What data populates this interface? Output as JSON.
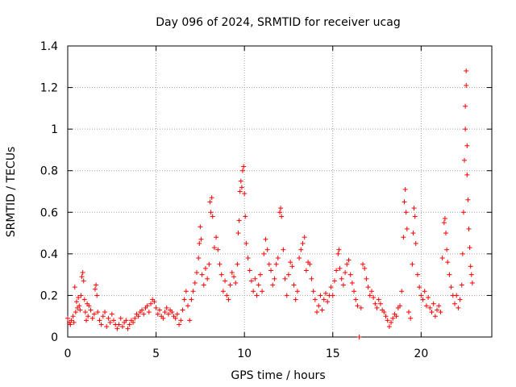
{
  "chart_data": {
    "type": "scatter",
    "title": "Day 096 of 2024, SRMTID for receiver ucag",
    "xlabel": "GPS time / hours",
    "ylabel": "SRMTID / TECUs",
    "xlim": [
      0,
      24
    ],
    "ylim": [
      0,
      1.4
    ],
    "x_ticks": [
      0,
      5,
      10,
      15,
      20
    ],
    "x_tick_labels": [
      "0",
      "5",
      "10",
      "15",
      "20"
    ],
    "y_ticks": [
      0,
      0.2,
      0.4,
      0.6,
      0.8,
      1.0,
      1.2,
      1.4
    ],
    "y_tick_labels": [
      "0",
      "0.2",
      "0.4",
      "0.6",
      "0.8",
      "1",
      "1.2",
      "1.4"
    ],
    "grid": true,
    "marker": "+",
    "marker_color": "#ff0000",
    "series": [
      {
        "name": "SRMTID",
        "points": [
          [
            0.0,
            0.09
          ],
          [
            0.1,
            0.07
          ],
          [
            0.15,
            0.06
          ],
          [
            0.2,
            0.08
          ],
          [
            0.3,
            0.1
          ],
          [
            0.35,
            0.07
          ],
          [
            0.4,
            0.24
          ],
          [
            0.45,
            0.12
          ],
          [
            0.5,
            0.17
          ],
          [
            0.55,
            0.14
          ],
          [
            0.6,
            0.19
          ],
          [
            0.65,
            0.15
          ],
          [
            0.7,
            0.13
          ],
          [
            0.75,
            0.2
          ],
          [
            0.8,
            0.29
          ],
          [
            0.85,
            0.31
          ],
          [
            0.9,
            0.27
          ],
          [
            0.95,
            0.18
          ],
          [
            1.0,
            0.12
          ],
          [
            1.05,
            0.08
          ],
          [
            1.1,
            0.16
          ],
          [
            1.15,
            0.1
          ],
          [
            1.2,
            0.15
          ],
          [
            1.3,
            0.13
          ],
          [
            1.4,
            0.09
          ],
          [
            1.5,
            0.11
          ],
          [
            1.55,
            0.23
          ],
          [
            1.6,
            0.25
          ],
          [
            1.65,
            0.2
          ],
          [
            1.7,
            0.12
          ],
          [
            1.8,
            0.08
          ],
          [
            1.9,
            0.06
          ],
          [
            2.0,
            0.1
          ],
          [
            2.1,
            0.12
          ],
          [
            2.2,
            0.05
          ],
          [
            2.3,
            0.09
          ],
          [
            2.4,
            0.07
          ],
          [
            2.5,
            0.11
          ],
          [
            2.6,
            0.08
          ],
          [
            2.7,
            0.06
          ],
          [
            2.8,
            0.04
          ],
          [
            2.9,
            0.06
          ],
          [
            3.0,
            0.09
          ],
          [
            3.1,
            0.05
          ],
          [
            3.2,
            0.07
          ],
          [
            3.3,
            0.08
          ],
          [
            3.4,
            0.04
          ],
          [
            3.5,
            0.06
          ],
          [
            3.6,
            0.08
          ],
          [
            3.7,
            0.07
          ],
          [
            3.8,
            0.09
          ],
          [
            3.9,
            0.11
          ],
          [
            4.0,
            0.1
          ],
          [
            4.1,
            0.12
          ],
          [
            4.2,
            0.13
          ],
          [
            4.3,
            0.11
          ],
          [
            4.4,
            0.14
          ],
          [
            4.5,
            0.15
          ],
          [
            4.6,
            0.12
          ],
          [
            4.7,
            0.16
          ],
          [
            4.8,
            0.18
          ],
          [
            4.9,
            0.17
          ],
          [
            5.0,
            0.14
          ],
          [
            5.1,
            0.11
          ],
          [
            5.2,
            0.13
          ],
          [
            5.3,
            0.1
          ],
          [
            5.4,
            0.09
          ],
          [
            5.5,
            0.12
          ],
          [
            5.6,
            0.14
          ],
          [
            5.7,
            0.11
          ],
          [
            5.8,
            0.13
          ],
          [
            5.9,
            0.12
          ],
          [
            6.0,
            0.1
          ],
          [
            6.1,
            0.09
          ],
          [
            6.2,
            0.11
          ],
          [
            6.3,
            0.06
          ],
          [
            6.4,
            0.08
          ],
          [
            6.5,
            0.13
          ],
          [
            6.6,
            0.18
          ],
          [
            6.7,
            0.22
          ],
          [
            6.8,
            0.15
          ],
          [
            6.9,
            0.08
          ],
          [
            7.0,
            0.18
          ],
          [
            7.1,
            0.22
          ],
          [
            7.2,
            0.26
          ],
          [
            7.3,
            0.31
          ],
          [
            7.4,
            0.38
          ],
          [
            7.45,
            0.45
          ],
          [
            7.5,
            0.53
          ],
          [
            7.55,
            0.47
          ],
          [
            7.6,
            0.3
          ],
          [
            7.7,
            0.25
          ],
          [
            7.8,
            0.33
          ],
          [
            7.9,
            0.28
          ],
          [
            8.0,
            0.35
          ],
          [
            8.05,
            0.65
          ],
          [
            8.1,
            0.6
          ],
          [
            8.15,
            0.67
          ],
          [
            8.2,
            0.58
          ],
          [
            8.3,
            0.43
          ],
          [
            8.4,
            0.48
          ],
          [
            8.5,
            0.42
          ],
          [
            8.6,
            0.35
          ],
          [
            8.7,
            0.3
          ],
          [
            8.8,
            0.22
          ],
          [
            8.9,
            0.27
          ],
          [
            9.0,
            0.2
          ],
          [
            9.1,
            0.18
          ],
          [
            9.2,
            0.25
          ],
          [
            9.3,
            0.31
          ],
          [
            9.4,
            0.29
          ],
          [
            9.5,
            0.26
          ],
          [
            9.6,
            0.35
          ],
          [
            9.65,
            0.5
          ],
          [
            9.7,
            0.56
          ],
          [
            9.75,
            0.7
          ],
          [
            9.8,
            0.75
          ],
          [
            9.85,
            0.72
          ],
          [
            9.9,
            0.8
          ],
          [
            9.95,
            0.82
          ],
          [
            10.0,
            0.69
          ],
          [
            10.05,
            0.58
          ],
          [
            10.1,
            0.45
          ],
          [
            10.2,
            0.38
          ],
          [
            10.3,
            0.32
          ],
          [
            10.4,
            0.27
          ],
          [
            10.5,
            0.22
          ],
          [
            10.6,
            0.28
          ],
          [
            10.7,
            0.2
          ],
          [
            10.8,
            0.25
          ],
          [
            10.9,
            0.3
          ],
          [
            11.0,
            0.22
          ],
          [
            11.1,
            0.4
          ],
          [
            11.2,
            0.47
          ],
          [
            11.3,
            0.42
          ],
          [
            11.4,
            0.35
          ],
          [
            11.5,
            0.32
          ],
          [
            11.6,
            0.25
          ],
          [
            11.7,
            0.28
          ],
          [
            11.8,
            0.35
          ],
          [
            11.9,
            0.38
          ],
          [
            12.0,
            0.6
          ],
          [
            12.05,
            0.62
          ],
          [
            12.1,
            0.58
          ],
          [
            12.2,
            0.42
          ],
          [
            12.3,
            0.28
          ],
          [
            12.4,
            0.2
          ],
          [
            12.5,
            0.3
          ],
          [
            12.6,
            0.36
          ],
          [
            12.7,
            0.34
          ],
          [
            12.8,
            0.25
          ],
          [
            12.9,
            0.18
          ],
          [
            13.0,
            0.22
          ],
          [
            13.1,
            0.38
          ],
          [
            13.2,
            0.42
          ],
          [
            13.3,
            0.45
          ],
          [
            13.4,
            0.48
          ],
          [
            13.5,
            0.32
          ],
          [
            13.6,
            0.36
          ],
          [
            13.7,
            0.35
          ],
          [
            13.8,
            0.28
          ],
          [
            13.9,
            0.22
          ],
          [
            14.0,
            0.18
          ],
          [
            14.1,
            0.12
          ],
          [
            14.2,
            0.15
          ],
          [
            14.3,
            0.2
          ],
          [
            14.4,
            0.13
          ],
          [
            14.5,
            0.18
          ],
          [
            14.6,
            0.21
          ],
          [
            14.7,
            0.17
          ],
          [
            14.8,
            0.2
          ],
          [
            14.9,
            0.24
          ],
          [
            15.0,
            0.2
          ],
          [
            15.1,
            0.27
          ],
          [
            15.2,
            0.32
          ],
          [
            15.3,
            0.4
          ],
          [
            15.35,
            0.42
          ],
          [
            15.4,
            0.33
          ],
          [
            15.5,
            0.28
          ],
          [
            15.6,
            0.25
          ],
          [
            15.7,
            0.31
          ],
          [
            15.8,
            0.35
          ],
          [
            15.9,
            0.37
          ],
          [
            16.0,
            0.3
          ],
          [
            16.1,
            0.26
          ],
          [
            16.2,
            0.22
          ],
          [
            16.3,
            0.18
          ],
          [
            16.4,
            0.15
          ],
          [
            16.5,
            0.0
          ],
          [
            16.6,
            0.14
          ],
          [
            16.7,
            0.35
          ],
          [
            16.8,
            0.33
          ],
          [
            16.9,
            0.28
          ],
          [
            17.0,
            0.24
          ],
          [
            17.1,
            0.2
          ],
          [
            17.2,
            0.22
          ],
          [
            17.3,
            0.19
          ],
          [
            17.4,
            0.16
          ],
          [
            17.5,
            0.14
          ],
          [
            17.6,
            0.18
          ],
          [
            17.7,
            0.16
          ],
          [
            17.8,
            0.13
          ],
          [
            17.9,
            0.12
          ],
          [
            18.0,
            0.1
          ],
          [
            18.1,
            0.08
          ],
          [
            18.2,
            0.05
          ],
          [
            18.3,
            0.07
          ],
          [
            18.4,
            0.09
          ],
          [
            18.5,
            0.11
          ],
          [
            18.6,
            0.1
          ],
          [
            18.7,
            0.14
          ],
          [
            18.8,
            0.15
          ],
          [
            18.9,
            0.22
          ],
          [
            19.0,
            0.48
          ],
          [
            19.05,
            0.65
          ],
          [
            19.1,
            0.71
          ],
          [
            19.15,
            0.6
          ],
          [
            19.2,
            0.52
          ],
          [
            19.3,
            0.12
          ],
          [
            19.4,
            0.09
          ],
          [
            19.5,
            0.35
          ],
          [
            19.55,
            0.5
          ],
          [
            19.6,
            0.62
          ],
          [
            19.65,
            0.58
          ],
          [
            19.7,
            0.45
          ],
          [
            19.8,
            0.3
          ],
          [
            19.9,
            0.24
          ],
          [
            20.0,
            0.2
          ],
          [
            20.1,
            0.18
          ],
          [
            20.2,
            0.22
          ],
          [
            20.3,
            0.15
          ],
          [
            20.4,
            0.19
          ],
          [
            20.5,
            0.14
          ],
          [
            20.6,
            0.12
          ],
          [
            20.7,
            0.16
          ],
          [
            20.8,
            0.1
          ],
          [
            20.9,
            0.13
          ],
          [
            21.0,
            0.15
          ],
          [
            21.1,
            0.12
          ],
          [
            21.2,
            0.38
          ],
          [
            21.3,
            0.55
          ],
          [
            21.35,
            0.57
          ],
          [
            21.4,
            0.5
          ],
          [
            21.45,
            0.42
          ],
          [
            21.5,
            0.36
          ],
          [
            21.6,
            0.3
          ],
          [
            21.7,
            0.24
          ],
          [
            21.8,
            0.2
          ],
          [
            21.9,
            0.16
          ],
          [
            22.0,
            0.2
          ],
          [
            22.1,
            0.14
          ],
          [
            22.2,
            0.18
          ],
          [
            22.3,
            0.25
          ],
          [
            22.35,
            0.4
          ],
          [
            22.4,
            0.6
          ],
          [
            22.45,
            0.85
          ],
          [
            22.5,
            1.0
          ],
          [
            22.5,
            1.11
          ],
          [
            22.55,
            1.21
          ],
          [
            22.55,
            1.28
          ],
          [
            22.6,
            0.92
          ],
          [
            22.6,
            0.78
          ],
          [
            22.65,
            0.66
          ],
          [
            22.7,
            0.52
          ],
          [
            22.75,
            0.43
          ],
          [
            22.8,
            0.34
          ],
          [
            22.85,
            0.3
          ],
          [
            22.9,
            0.26
          ]
        ]
      }
    ]
  }
}
